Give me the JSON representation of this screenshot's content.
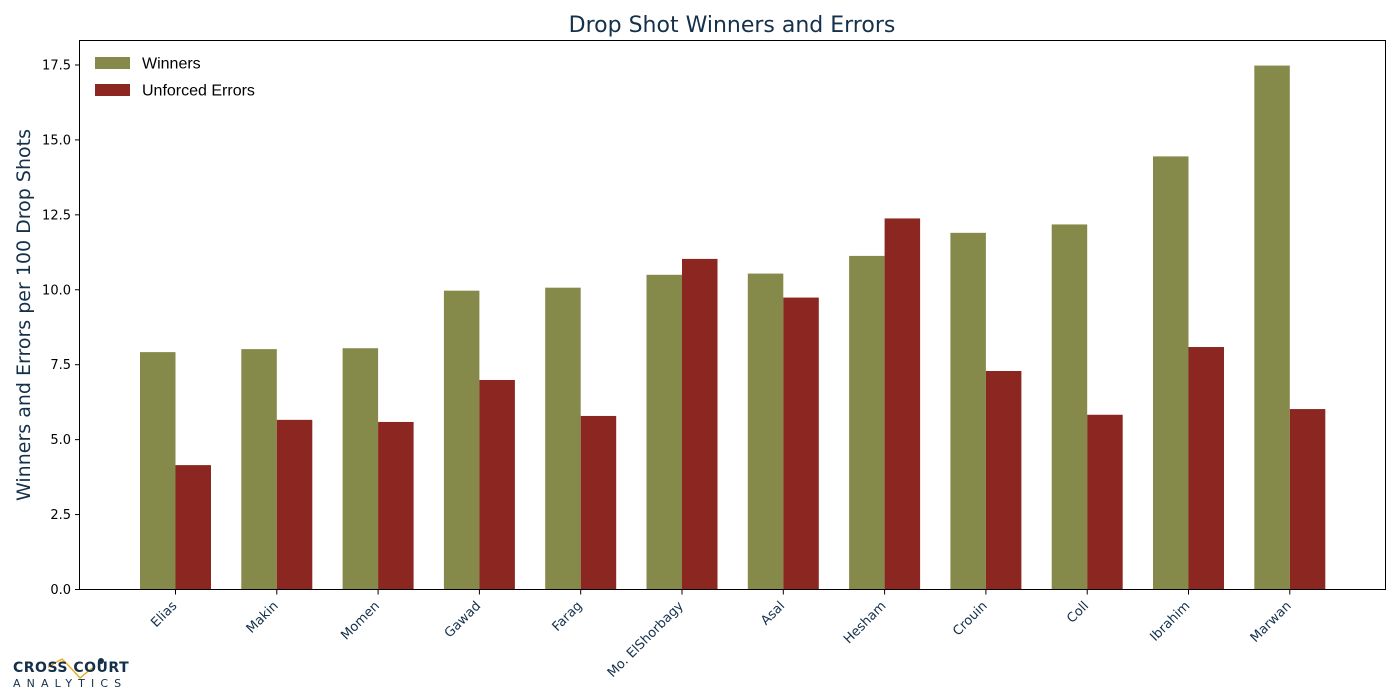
{
  "chart_data": {
    "type": "bar",
    "title": "Drop Shot Winners and Errors",
    "xlabel": "",
    "ylabel": "Winners and Errors per 100 Drop Shots",
    "categories": [
      "Elias",
      "Makin",
      "Momen",
      "Gawad",
      "Farag",
      "Mo. ElShorbagy",
      "Asal",
      "Hesham",
      "Crouin",
      "Coll",
      "Ibrahim",
      "Marwan"
    ],
    "series": [
      {
        "name": "Winners",
        "color": "#858a4a",
        "values": [
          7.92,
          8.02,
          8.05,
          9.97,
          10.07,
          10.5,
          10.54,
          11.13,
          11.9,
          12.18,
          14.45,
          17.48
        ]
      },
      {
        "name": "Unforced Errors",
        "color": "#8b2620",
        "values": [
          4.15,
          5.66,
          5.59,
          6.99,
          5.79,
          11.03,
          9.74,
          12.38,
          7.29,
          5.83,
          8.09,
          6.02
        ]
      }
    ],
    "ylim": [
      0,
      18.3
    ],
    "yticks": [
      "0.0",
      "2.5",
      "5.0",
      "7.5",
      "10.0",
      "12.5",
      "15.0",
      "17.5"
    ],
    "grid": false,
    "legend_position": "top-left"
  },
  "branding": {
    "logo_line1": "CROSS COURT",
    "logo_line2": "ANALYTICS",
    "accent_color": "#f2a81d",
    "brand_color": "#14304a"
  }
}
